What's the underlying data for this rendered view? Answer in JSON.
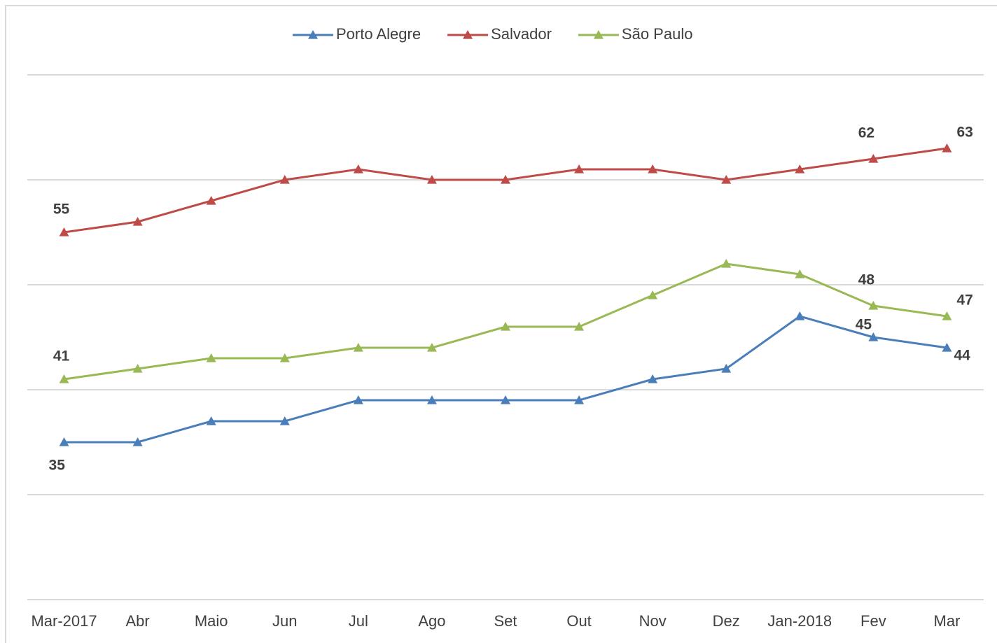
{
  "chart_data": {
    "type": "line",
    "categories": [
      "Mar-2017",
      "Abr",
      "Maio",
      "Jun",
      "Jul",
      "Ago",
      "Set",
      "Out",
      "Nov",
      "Dez",
      "Jan-2018",
      "Fev",
      "Mar"
    ],
    "series": [
      {
        "name": "Porto Alegre",
        "color": "#4a7ebb",
        "values": [
          35,
          35,
          37,
          37,
          39,
          39,
          39,
          39,
          41,
          42,
          47,
          45,
          44
        ],
        "value_labels": [
          "35",
          null,
          null,
          null,
          null,
          null,
          null,
          null,
          null,
          null,
          null,
          "45",
          "44"
        ]
      },
      {
        "name": "Salvador",
        "color": "#be4b48",
        "values": [
          55,
          56,
          58,
          60,
          61,
          60,
          60,
          61,
          61,
          60,
          61,
          62,
          63
        ],
        "value_labels": [
          "55",
          null,
          null,
          null,
          null,
          null,
          null,
          null,
          null,
          null,
          null,
          "62",
          "63"
        ]
      },
      {
        "name": "São Paulo",
        "color": "#98b954",
        "values": [
          41,
          42,
          43,
          43,
          44,
          44,
          46,
          46,
          49,
          52,
          51,
          48,
          47
        ],
        "value_labels": [
          "41",
          null,
          null,
          null,
          null,
          null,
          null,
          null,
          null,
          null,
          null,
          "48",
          "47"
        ]
      }
    ],
    "ylim": [
      20,
      70
    ],
    "yticks": [
      20,
      30,
      40,
      50,
      60,
      70
    ],
    "grid": true,
    "legend": "top"
  }
}
